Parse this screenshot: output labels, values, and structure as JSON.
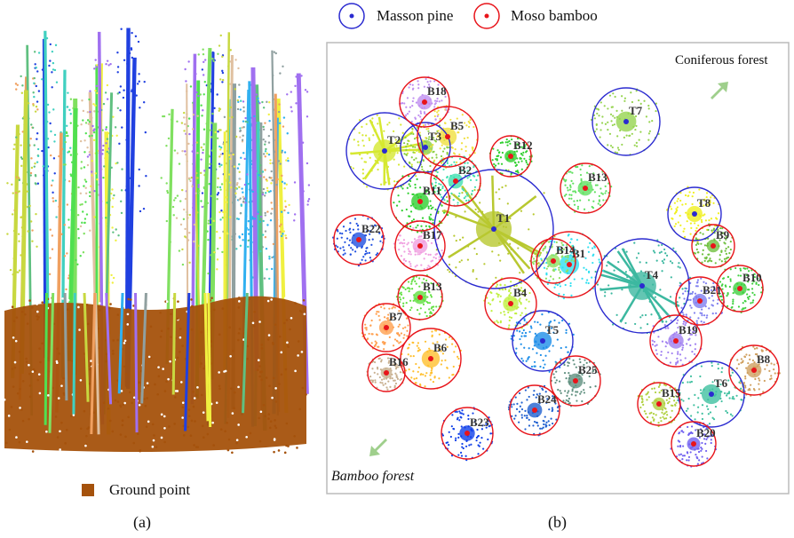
{
  "legend_top": {
    "masson_pine": {
      "label": "Masson pine",
      "color": "#2b2bd0"
    },
    "moso_bamboo": {
      "label": "Moso bamboo",
      "color": "#e8141a"
    }
  },
  "panel_a": {
    "caption": "(a)",
    "legend_label": "Ground point",
    "ground_color": "#a5520c"
  },
  "panel_b": {
    "caption": "(b)",
    "coniferous_label": "Coniferous forest",
    "bamboo_label": "Bamboo forest",
    "arrow_color": "#9fcf8c",
    "trees": [
      {
        "label": "T1",
        "type": "pine",
        "color": "#b8c830"
      },
      {
        "label": "T2",
        "type": "pine",
        "color": "#d6e830"
      },
      {
        "label": "T3",
        "type": "pine",
        "color": "#8ccf40"
      },
      {
        "label": "T4",
        "type": "pine",
        "color": "#3cb8a0"
      },
      {
        "label": "T5",
        "type": "pine",
        "color": "#1e8ee8"
      },
      {
        "label": "T6",
        "type": "pine",
        "color": "#40c0a0"
      },
      {
        "label": "T7",
        "type": "pine",
        "color": "#96d450"
      },
      {
        "label": "T8",
        "type": "pine",
        "color": "#f0f020"
      },
      {
        "label": "B1",
        "type": "bamboo",
        "color": "#30e0f0"
      },
      {
        "label": "B2",
        "type": "bamboo",
        "color": "#40e0b0"
      },
      {
        "label": "B4",
        "type": "bamboo",
        "color": "#c0f040"
      },
      {
        "label": "B5",
        "type": "bamboo",
        "color": "#f0e040"
      },
      {
        "label": "B6",
        "type": "bamboo",
        "color": "#ffc030"
      },
      {
        "label": "B7",
        "type": "bamboo",
        "color": "#ffa050"
      },
      {
        "label": "B8",
        "type": "bamboo",
        "color": "#d0a060"
      },
      {
        "label": "B9",
        "type": "bamboo",
        "color": "#70c040"
      },
      {
        "label": "B10",
        "type": "bamboo",
        "color": "#40d040"
      },
      {
        "label": "B11",
        "type": "bamboo",
        "color": "#30d030"
      },
      {
        "label": "B12",
        "type": "bamboo",
        "color": "#30d030"
      },
      {
        "label": "B13",
        "type": "bamboo",
        "color": "#60e060"
      },
      {
        "label": "B13",
        "type": "bamboo",
        "color": "#60e040"
      },
      {
        "label": "B14",
        "type": "bamboo",
        "color": "#90e060"
      },
      {
        "label": "B15",
        "type": "bamboo",
        "color": "#b0d040"
      },
      {
        "label": "B16",
        "type": "bamboo",
        "color": "#c8b090"
      },
      {
        "label": "B17",
        "type": "bamboo",
        "color": "#f0a0e0"
      },
      {
        "label": "B18",
        "type": "bamboo",
        "color": "#c090f0"
      },
      {
        "label": "B19",
        "type": "bamboo",
        "color": "#a080f0"
      },
      {
        "label": "B20",
        "type": "bamboo",
        "color": "#7060f0"
      },
      {
        "label": "B21",
        "type": "bamboo",
        "color": "#8080f0"
      },
      {
        "label": "B22",
        "type": "bamboo",
        "color": "#2050e0"
      },
      {
        "label": "B23",
        "type": "bamboo",
        "color": "#1040e8"
      },
      {
        "label": "B24",
        "type": "bamboo",
        "color": "#2060d0"
      },
      {
        "label": "B25",
        "type": "bamboo",
        "color": "#609080"
      }
    ]
  }
}
